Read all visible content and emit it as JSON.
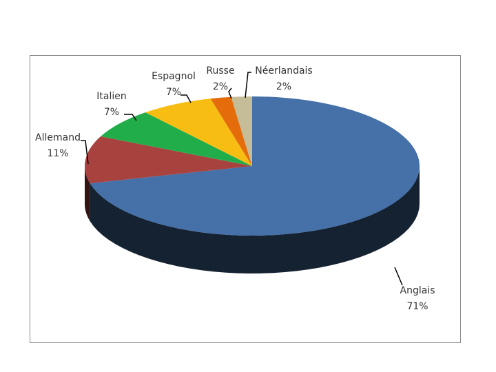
{
  "chart_data": {
    "type": "pie",
    "pie_3d": true,
    "categories": [
      "Anglais",
      "Allemand",
      "Italien",
      "Espagnol",
      "Russe",
      "Néerlandais"
    ],
    "values": [
      71,
      11,
      7,
      7,
      2,
      2
    ],
    "value_labels": [
      "71%",
      "11%",
      "7%",
      "7%",
      "2%",
      "2%"
    ],
    "colors": [
      "#4570a8",
      "#a8423f",
      "#22ad4b",
      "#f8bd12",
      "#e46c0a",
      "#c4bd97"
    ]
  }
}
